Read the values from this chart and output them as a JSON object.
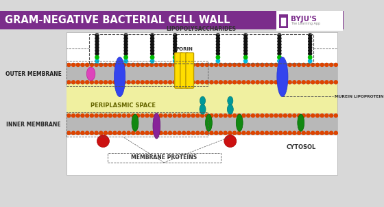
{
  "title": "GRAM-NEGATIVE BACTERIAL CELL WALL",
  "title_bg": "#7b2d8b",
  "title_color": "#ffffff",
  "bg_color": "#d8d8d8",
  "periplasm_color": "#f0f0a0",
  "outer_membrane_label": "OUTER MEMBRANE",
  "inner_membrane_label": "INNER MEMBRANE",
  "periplasm_label": "PERIPLASMIC SPACE",
  "cytosol_label": "CYTOSOL",
  "membrane_proteins_label": "MEMBRANE PROTEINS",
  "lipopoly_label": "LIPOPOLYSACCHARIDES",
  "porin_label": "PORIN",
  "murein_label": "MUREIN LIPOPROTEIN",
  "byju_color": "#7b2d8b"
}
